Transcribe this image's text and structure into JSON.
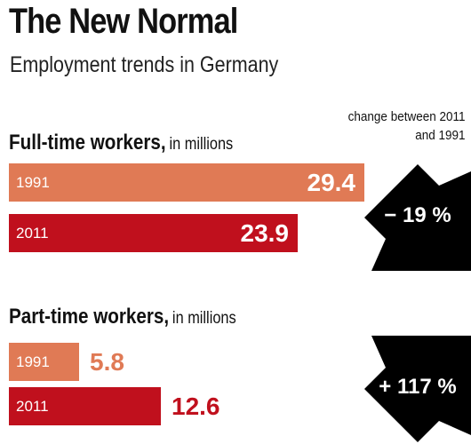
{
  "title": "The New Normal",
  "subtitle": "Employment trends in Germany",
  "change_note": [
    "change between 2011",
    "and 1991"
  ],
  "colors": {
    "bar_1991": "#E07A55",
    "bar_2011": "#C0101D",
    "arrow": "#000000"
  },
  "chart_data": [
    {
      "type": "bar",
      "title": "Full-time workers,",
      "unit": "in millions",
      "categories": [
        "1991",
        "2011"
      ],
      "values": [
        29.4,
        23.9
      ],
      "value_labels": [
        "29.4",
        "23.9"
      ],
      "change_label": "− 19 %",
      "change_direction": "down"
    },
    {
      "type": "bar",
      "title": "Part-time workers,",
      "unit": "in millions",
      "categories": [
        "1991",
        "2011"
      ],
      "values": [
        5.8,
        12.6
      ],
      "value_labels": [
        "5.8",
        "12.6"
      ],
      "change_label": "+ 117 %",
      "change_direction": "up"
    }
  ]
}
